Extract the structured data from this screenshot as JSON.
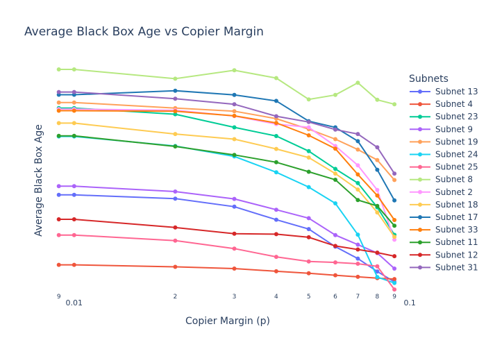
{
  "chart_data": {
    "type": "line",
    "title": "Average Black Box Age vs Copier Margin",
    "xlabel": "Copier Margin (p)",
    "ylabel": "Average Black Box Age",
    "x_scale": "log",
    "xlim": [
      0.0088,
      0.093
    ],
    "ylim": [
      0,
      100
    ],
    "x_ticks": [
      {
        "value": 0.009,
        "label": "9",
        "small": true
      },
      {
        "value": 0.01,
        "label": "0.01",
        "small": false
      },
      {
        "value": 0.02,
        "label": "2",
        "small": true
      },
      {
        "value": 0.03,
        "label": "3",
        "small": true
      },
      {
        "value": 0.04,
        "label": "4",
        "small": true
      },
      {
        "value": 0.05,
        "label": "5",
        "small": true
      },
      {
        "value": 0.06,
        "label": "6",
        "small": true
      },
      {
        "value": 0.07,
        "label": "7",
        "small": true
      },
      {
        "value": 0.08,
        "label": "8",
        "small": true
      },
      {
        "value": 0.09,
        "label": "9",
        "small": true
      },
      {
        "value": 0.1,
        "label": "0.1",
        "small": false
      }
    ],
    "legend": {
      "title": "Subnets",
      "position": "right"
    },
    "x": [
      0.009,
      0.01,
      0.02,
      0.03,
      0.04,
      0.05,
      0.06,
      0.07,
      0.08,
      0.09
    ],
    "series": [
      {
        "name": "Subnet 13",
        "color": "#636efa",
        "values": [
          43.5,
          43.5,
          41.8,
          38.2,
          32.3,
          28.1,
          20.2,
          14.8,
          9.0,
          4.3
        ]
      },
      {
        "name": "Subnet 4",
        "color": "#ef553b",
        "values": [
          12.0,
          12.0,
          11.1,
          10.3,
          9.1,
          8.2,
          7.3,
          6.6,
          6.0,
          5.6
        ]
      },
      {
        "name": "Subnet 23",
        "color": "#00cc96",
        "values": [
          82.6,
          82.6,
          79.8,
          73.9,
          70.0,
          63.2,
          55.2,
          48.8,
          37.9,
          25.5
        ]
      },
      {
        "name": "Subnet 9",
        "color": "#ab63fa",
        "values": [
          47.4,
          47.4,
          45.0,
          41.7,
          36.8,
          33.0,
          25.4,
          21.1,
          17.3,
          10.3
        ]
      },
      {
        "name": "Subnet 19",
        "color": "#ffa15a",
        "values": [
          85.1,
          85.1,
          82.6,
          81.2,
          77.8,
          73.1,
          68.6,
          63.9,
          59.2,
          50.2
        ]
      },
      {
        "name": "Subnet 24",
        "color": "#19d3f3",
        "values": [
          69.8,
          69.8,
          65.5,
          60.8,
          53.7,
          47.0,
          39.7,
          25.6,
          6.5,
          3.8
        ]
      },
      {
        "name": "Subnet 25",
        "color": "#ff6692",
        "values": [
          25.4,
          25.4,
          22.9,
          19.3,
          15.6,
          13.5,
          13.1,
          12.5,
          11.3,
          0.9
        ]
      },
      {
        "name": "Subnet 8",
        "color": "#b6e880",
        "values": [
          100.0,
          100.0,
          95.8,
          99.6,
          96.1,
          86.5,
          88.5,
          94.0,
          86.3,
          84.3
        ]
      },
      {
        "name": "Subnet 2",
        "color": "#ff97ff",
        "values": [
          82.1,
          82.1,
          81.6,
          79.0,
          75.4,
          73.9,
          65.5,
          56.8,
          45.7,
          23.3
        ]
      },
      {
        "name": "Subnet 18",
        "color": "#fecb52",
        "values": [
          75.8,
          75.8,
          70.9,
          68.6,
          64.2,
          60.3,
          53.1,
          45.9,
          35.6,
          24.6
        ]
      },
      {
        "name": "Subnet 17",
        "color": "#1f77b4",
        "values": [
          88.6,
          88.6,
          90.4,
          88.5,
          85.8,
          76.7,
          73.9,
          67.7,
          54.8,
          41.0
        ]
      },
      {
        "name": "Subnet 33",
        "color": "#ff7f0e",
        "values": [
          81.4,
          81.4,
          81.2,
          79.1,
          75.9,
          70.3,
          64.3,
          52.7,
          43.2,
          32.2
        ]
      },
      {
        "name": "Subnet 11",
        "color": "#2ca02c",
        "values": [
          70.1,
          70.1,
          65.3,
          61.5,
          58.2,
          53.9,
          50.3,
          41.2,
          38.5,
          29.6
        ]
      },
      {
        "name": "Subnet 12",
        "color": "#d62728",
        "values": [
          32.5,
          32.5,
          28.8,
          26.0,
          25.8,
          24.4,
          20.5,
          18.9,
          17.5,
          15.9
        ]
      },
      {
        "name": "Subnet 31",
        "color": "#9467bd",
        "values": [
          89.8,
          89.8,
          86.8,
          84.3,
          78.9,
          76.3,
          72.9,
          70.9,
          64.9,
          53.1
        ]
      }
    ]
  }
}
